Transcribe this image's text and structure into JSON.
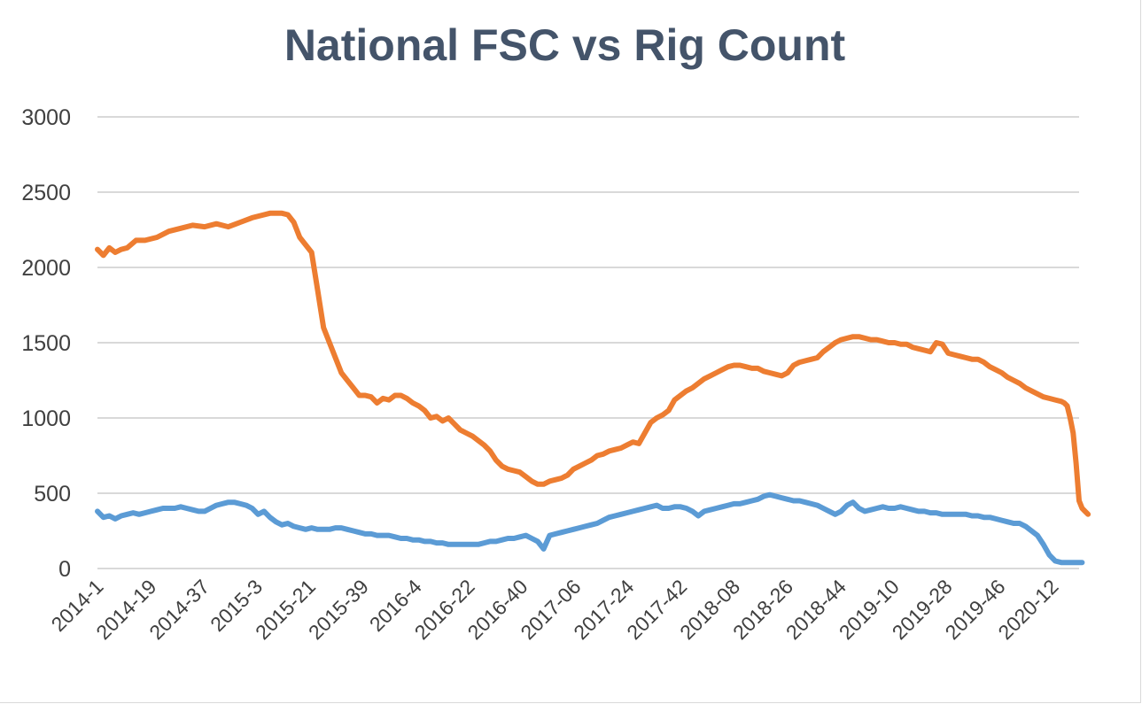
{
  "chart_data": {
    "type": "line",
    "title": "National FSC vs Rig Count",
    "xlabel": "",
    "ylabel": "",
    "ylim": [
      0,
      3000
    ],
    "yticks": [
      0,
      500,
      1000,
      1500,
      2000,
      2500,
      3000
    ],
    "grid": true,
    "legend": "none",
    "categories": [
      "2014-1",
      "2014-19",
      "2014-37",
      "2015-3",
      "2015-21",
      "2015-39",
      "2016-4",
      "2016-22",
      "2016-40",
      "2017-06",
      "2017-24",
      "2017-42",
      "2018-08",
      "2018-26",
      "2018-44",
      "2019-10",
      "2019-28",
      "2019-46",
      "2020-12"
    ],
    "n_weeks": 330,
    "series": [
      {
        "name": "Orange series",
        "color": "#ed7d31",
        "points": [
          [
            0,
            2120
          ],
          [
            2,
            2080
          ],
          [
            4,
            2130
          ],
          [
            6,
            2100
          ],
          [
            8,
            2120
          ],
          [
            10,
            2130
          ],
          [
            13,
            2180
          ],
          [
            16,
            2180
          ],
          [
            20,
            2200
          ],
          [
            24,
            2240
          ],
          [
            28,
            2260
          ],
          [
            32,
            2280
          ],
          [
            36,
            2270
          ],
          [
            40,
            2290
          ],
          [
            44,
            2270
          ],
          [
            48,
            2300
          ],
          [
            52,
            2330
          ],
          [
            56,
            2350
          ],
          [
            58,
            2360
          ],
          [
            62,
            2360
          ],
          [
            64,
            2350
          ],
          [
            66,
            2300
          ],
          [
            68,
            2200
          ],
          [
            70,
            2150
          ],
          [
            72,
            2100
          ],
          [
            74,
            1850
          ],
          [
            76,
            1600
          ],
          [
            78,
            1500
          ],
          [
            80,
            1400
          ],
          [
            82,
            1300
          ],
          [
            84,
            1250
          ],
          [
            86,
            1200
          ],
          [
            88,
            1150
          ],
          [
            90,
            1150
          ],
          [
            92,
            1140
          ],
          [
            94,
            1100
          ],
          [
            96,
            1130
          ],
          [
            98,
            1120
          ],
          [
            100,
            1150
          ],
          [
            102,
            1150
          ],
          [
            104,
            1130
          ],
          [
            106,
            1100
          ],
          [
            108,
            1080
          ],
          [
            110,
            1050
          ],
          [
            112,
            1000
          ],
          [
            114,
            1010
          ],
          [
            116,
            980
          ],
          [
            118,
            1000
          ],
          [
            120,
            960
          ],
          [
            122,
            920
          ],
          [
            124,
            900
          ],
          [
            126,
            880
          ],
          [
            128,
            850
          ],
          [
            130,
            820
          ],
          [
            132,
            780
          ],
          [
            134,
            720
          ],
          [
            136,
            680
          ],
          [
            138,
            660
          ],
          [
            140,
            650
          ],
          [
            142,
            640
          ],
          [
            144,
            610
          ],
          [
            146,
            580
          ],
          [
            148,
            560
          ],
          [
            150,
            560
          ],
          [
            152,
            580
          ],
          [
            154,
            590
          ],
          [
            156,
            600
          ],
          [
            158,
            620
          ],
          [
            160,
            660
          ],
          [
            162,
            680
          ],
          [
            164,
            700
          ],
          [
            166,
            720
          ],
          [
            168,
            750
          ],
          [
            170,
            760
          ],
          [
            172,
            780
          ],
          [
            174,
            790
          ],
          [
            176,
            800
          ],
          [
            178,
            820
          ],
          [
            180,
            840
          ],
          [
            182,
            830
          ],
          [
            184,
            900
          ],
          [
            186,
            970
          ],
          [
            188,
            1000
          ],
          [
            190,
            1020
          ],
          [
            192,
            1050
          ],
          [
            194,
            1120
          ],
          [
            196,
            1150
          ],
          [
            198,
            1180
          ],
          [
            200,
            1200
          ],
          [
            202,
            1230
          ],
          [
            204,
            1260
          ],
          [
            206,
            1280
          ],
          [
            208,
            1300
          ],
          [
            210,
            1320
          ],
          [
            212,
            1340
          ],
          [
            214,
            1350
          ],
          [
            216,
            1350
          ],
          [
            218,
            1340
          ],
          [
            220,
            1330
          ],
          [
            222,
            1330
          ],
          [
            224,
            1310
          ],
          [
            226,
            1300
          ],
          [
            228,
            1290
          ],
          [
            230,
            1280
          ],
          [
            232,
            1300
          ],
          [
            234,
            1350
          ],
          [
            236,
            1370
          ],
          [
            238,
            1380
          ],
          [
            240,
            1390
          ],
          [
            242,
            1400
          ],
          [
            244,
            1440
          ],
          [
            246,
            1470
          ],
          [
            248,
            1500
          ],
          [
            250,
            1520
          ],
          [
            252,
            1530
          ],
          [
            254,
            1540
          ],
          [
            256,
            1540
          ],
          [
            258,
            1530
          ],
          [
            260,
            1520
          ],
          [
            262,
            1520
          ],
          [
            264,
            1510
          ],
          [
            266,
            1500
          ],
          [
            268,
            1500
          ],
          [
            270,
            1490
          ],
          [
            272,
            1490
          ],
          [
            274,
            1470
          ],
          [
            276,
            1460
          ],
          [
            278,
            1450
          ],
          [
            280,
            1440
          ],
          [
            282,
            1500
          ],
          [
            284,
            1490
          ],
          [
            286,
            1430
          ],
          [
            288,
            1420
          ],
          [
            290,
            1410
          ],
          [
            292,
            1400
          ],
          [
            294,
            1390
          ],
          [
            296,
            1390
          ],
          [
            298,
            1370
          ],
          [
            300,
            1340
          ],
          [
            302,
            1320
          ],
          [
            304,
            1300
          ],
          [
            306,
            1270
          ],
          [
            308,
            1250
          ],
          [
            310,
            1230
          ],
          [
            312,
            1200
          ],
          [
            314,
            1180
          ],
          [
            316,
            1160
          ],
          [
            318,
            1140
          ],
          [
            320,
            1130
          ],
          [
            322,
            1120
          ],
          [
            324,
            1110
          ],
          [
            325,
            1100
          ],
          [
            326,
            1080
          ],
          [
            327,
            1000
          ],
          [
            328,
            900
          ],
          [
            329,
            700
          ],
          [
            330,
            450
          ],
          [
            331,
            400
          ],
          [
            332,
            380
          ],
          [
            333,
            360
          ]
        ]
      },
      {
        "name": "Blue series",
        "color": "#5b9bd5",
        "points": [
          [
            0,
            380
          ],
          [
            2,
            340
          ],
          [
            4,
            350
          ],
          [
            6,
            330
          ],
          [
            8,
            350
          ],
          [
            10,
            360
          ],
          [
            12,
            370
          ],
          [
            14,
            360
          ],
          [
            16,
            370
          ],
          [
            18,
            380
          ],
          [
            20,
            390
          ],
          [
            22,
            400
          ],
          [
            24,
            400
          ],
          [
            26,
            400
          ],
          [
            28,
            410
          ],
          [
            30,
            400
          ],
          [
            32,
            390
          ],
          [
            34,
            380
          ],
          [
            36,
            380
          ],
          [
            38,
            400
          ],
          [
            40,
            420
          ],
          [
            42,
            430
          ],
          [
            44,
            440
          ],
          [
            46,
            440
          ],
          [
            48,
            430
          ],
          [
            50,
            420
          ],
          [
            52,
            400
          ],
          [
            54,
            360
          ],
          [
            56,
            380
          ],
          [
            58,
            340
          ],
          [
            60,
            310
          ],
          [
            62,
            290
          ],
          [
            64,
            300
          ],
          [
            66,
            280
          ],
          [
            68,
            270
          ],
          [
            70,
            260
          ],
          [
            72,
            270
          ],
          [
            74,
            260
          ],
          [
            76,
            260
          ],
          [
            78,
            260
          ],
          [
            80,
            270
          ],
          [
            82,
            270
          ],
          [
            84,
            260
          ],
          [
            86,
            250
          ],
          [
            88,
            240
          ],
          [
            90,
            230
          ],
          [
            92,
            230
          ],
          [
            94,
            220
          ],
          [
            96,
            220
          ],
          [
            98,
            220
          ],
          [
            100,
            210
          ],
          [
            102,
            200
          ],
          [
            104,
            200
          ],
          [
            106,
            190
          ],
          [
            108,
            190
          ],
          [
            110,
            180
          ],
          [
            112,
            180
          ],
          [
            114,
            170
          ],
          [
            116,
            170
          ],
          [
            118,
            160
          ],
          [
            120,
            160
          ],
          [
            122,
            160
          ],
          [
            124,
            160
          ],
          [
            126,
            160
          ],
          [
            128,
            160
          ],
          [
            130,
            170
          ],
          [
            132,
            180
          ],
          [
            134,
            180
          ],
          [
            136,
            190
          ],
          [
            138,
            200
          ],
          [
            140,
            200
          ],
          [
            142,
            210
          ],
          [
            144,
            220
          ],
          [
            146,
            200
          ],
          [
            148,
            180
          ],
          [
            150,
            130
          ],
          [
            152,
            220
          ],
          [
            154,
            230
          ],
          [
            156,
            240
          ],
          [
            158,
            250
          ],
          [
            160,
            260
          ],
          [
            162,
            270
          ],
          [
            164,
            280
          ],
          [
            166,
            290
          ],
          [
            168,
            300
          ],
          [
            170,
            320
          ],
          [
            172,
            340
          ],
          [
            174,
            350
          ],
          [
            176,
            360
          ],
          [
            178,
            370
          ],
          [
            180,
            380
          ],
          [
            182,
            390
          ],
          [
            184,
            400
          ],
          [
            186,
            410
          ],
          [
            188,
            420
          ],
          [
            190,
            400
          ],
          [
            192,
            400
          ],
          [
            194,
            410
          ],
          [
            196,
            410
          ],
          [
            198,
            400
          ],
          [
            200,
            380
          ],
          [
            202,
            350
          ],
          [
            204,
            380
          ],
          [
            206,
            390
          ],
          [
            208,
            400
          ],
          [
            210,
            410
          ],
          [
            212,
            420
          ],
          [
            214,
            430
          ],
          [
            216,
            430
          ],
          [
            218,
            440
          ],
          [
            220,
            450
          ],
          [
            222,
            460
          ],
          [
            224,
            480
          ],
          [
            226,
            490
          ],
          [
            228,
            480
          ],
          [
            230,
            470
          ],
          [
            232,
            460
          ],
          [
            234,
            450
          ],
          [
            236,
            450
          ],
          [
            238,
            440
          ],
          [
            240,
            430
          ],
          [
            242,
            420
          ],
          [
            244,
            400
          ],
          [
            246,
            380
          ],
          [
            248,
            360
          ],
          [
            250,
            380
          ],
          [
            252,
            420
          ],
          [
            254,
            440
          ],
          [
            256,
            400
          ],
          [
            258,
            380
          ],
          [
            260,
            390
          ],
          [
            262,
            400
          ],
          [
            264,
            410
          ],
          [
            266,
            400
          ],
          [
            268,
            400
          ],
          [
            270,
            410
          ],
          [
            272,
            400
          ],
          [
            274,
            390
          ],
          [
            276,
            380
          ],
          [
            278,
            380
          ],
          [
            280,
            370
          ],
          [
            282,
            370
          ],
          [
            284,
            360
          ],
          [
            286,
            360
          ],
          [
            288,
            360
          ],
          [
            290,
            360
          ],
          [
            292,
            360
          ],
          [
            294,
            350
          ],
          [
            296,
            350
          ],
          [
            298,
            340
          ],
          [
            300,
            340
          ],
          [
            302,
            330
          ],
          [
            304,
            320
          ],
          [
            306,
            310
          ],
          [
            308,
            300
          ],
          [
            310,
            300
          ],
          [
            312,
            280
          ],
          [
            314,
            250
          ],
          [
            316,
            220
          ],
          [
            318,
            160
          ],
          [
            320,
            90
          ],
          [
            322,
            50
          ],
          [
            324,
            40
          ],
          [
            326,
            40
          ],
          [
            328,
            40
          ],
          [
            330,
            40
          ],
          [
            331,
            40
          ]
        ]
      }
    ]
  }
}
